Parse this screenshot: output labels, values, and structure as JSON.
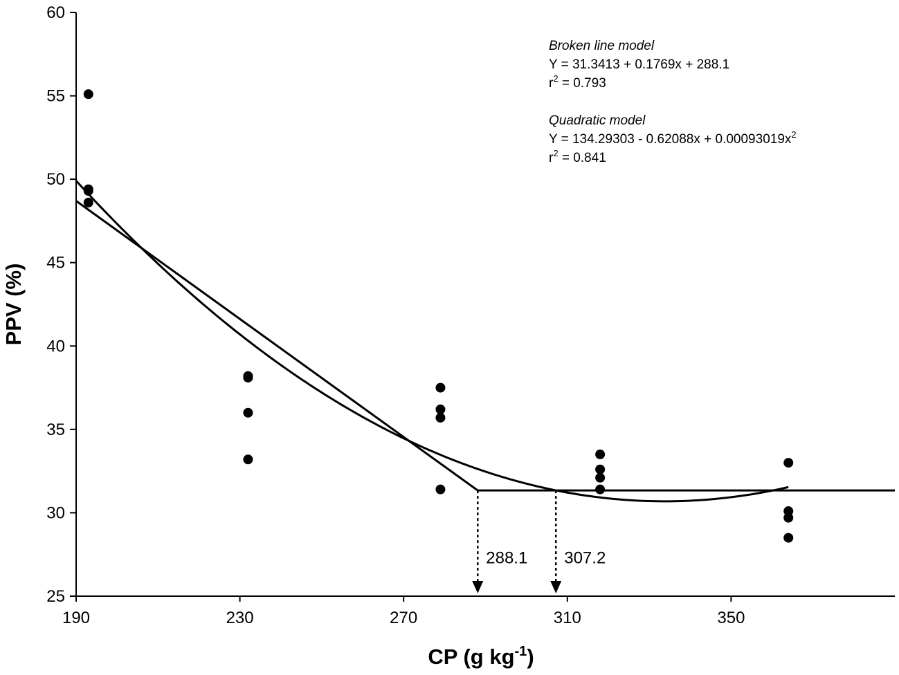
{
  "chart_data": {
    "type": "scatter",
    "xlabel": "CP (g kg",
    "xlabel_sup": "-1",
    "xlabel_end": ")",
    "ylabel": "PPV (%)",
    "xlim": [
      190,
      390
    ],
    "ylim": [
      25,
      60
    ],
    "xticks": [
      190,
      230,
      270,
      310,
      350
    ],
    "yticks": [
      25,
      30,
      35,
      40,
      45,
      50,
      55,
      60
    ],
    "points": [
      {
        "x": 193,
        "y": 55.1
      },
      {
        "x": 193,
        "y": 49.4
      },
      {
        "x": 193,
        "y": 49.3
      },
      {
        "x": 193,
        "y": 48.6
      },
      {
        "x": 232,
        "y": 38.2
      },
      {
        "x": 232,
        "y": 38.1
      },
      {
        "x": 232,
        "y": 36.0
      },
      {
        "x": 232,
        "y": 33.2
      },
      {
        "x": 279,
        "y": 37.5
      },
      {
        "x": 279,
        "y": 36.2
      },
      {
        "x": 279,
        "y": 35.7
      },
      {
        "x": 279,
        "y": 31.4
      },
      {
        "x": 318,
        "y": 33.5
      },
      {
        "x": 318,
        "y": 32.6
      },
      {
        "x": 318,
        "y": 32.1
      },
      {
        "x": 318,
        "y": 31.4
      },
      {
        "x": 364,
        "y": 33.0
      },
      {
        "x": 364,
        "y": 30.1
      },
      {
        "x": 364,
        "y": 29.7
      },
      {
        "x": 364,
        "y": 28.5
      }
    ],
    "series": [
      {
        "name": "Broken line model",
        "type": "line",
        "x": [
          190,
          288.1,
          390
        ],
        "y": [
          48.7,
          31.34,
          31.34
        ]
      },
      {
        "name": "Quadratic model",
        "type": "quadratic",
        "coef": [
          134.29303,
          -0.62088,
          0.00093019
        ],
        "x_range": [
          190,
          364
        ]
      }
    ],
    "markers": [
      {
        "x": 288.1,
        "y_from": 31.34,
        "label": "288.1"
      },
      {
        "x": 307.2,
        "y_from": 31.34,
        "label": "307.2"
      }
    ]
  },
  "annotations": {
    "broken": {
      "title": "Broken line model",
      "equation": "Y = 31.3413 + 0.1769x + 288.1",
      "r2_prefix": "r",
      "r2_sup": "2",
      "r2_value": " = 0.793"
    },
    "quadratic": {
      "title": "Quadratic model",
      "equation": "Y = 134.29303 - 0.62088x + 0.00093019x",
      "equation_sup": "2",
      "r2_prefix": "r",
      "r2_sup": "2",
      "r2_value": " = 0.841"
    }
  }
}
